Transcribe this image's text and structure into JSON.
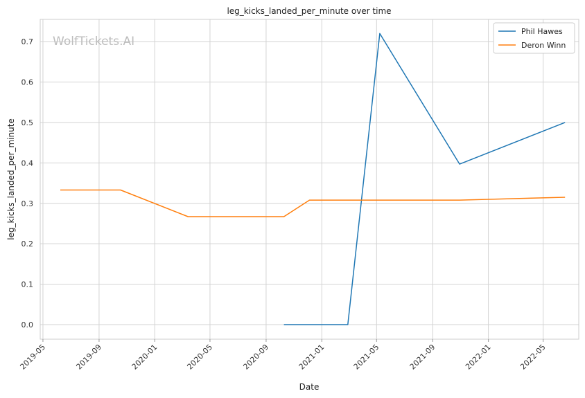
{
  "watermark": "WolfTickets.AI",
  "chart_data": {
    "type": "line",
    "title": "leg_kicks_landed_per_minute over time",
    "xlabel": "Date",
    "ylabel": "leg_kicks_landed_per_minute",
    "x_type": "date",
    "xlim": [
      "2019-04-25",
      "2022-07-18"
    ],
    "ylim": [
      -0.036,
      0.755
    ],
    "x_ticks": [
      "2019-05",
      "2019-09",
      "2020-01",
      "2020-05",
      "2020-09",
      "2021-01",
      "2021-05",
      "2021-09",
      "2022-01",
      "2022-05"
    ],
    "y_ticks": [
      0.0,
      0.1,
      0.2,
      0.3,
      0.4,
      0.5,
      0.6,
      0.7
    ],
    "y_tick_labels": [
      "0.0",
      "0.1",
      "0.2",
      "0.3",
      "0.4",
      "0.5",
      "0.6",
      "0.7"
    ],
    "grid": true,
    "legend_position": "top-right",
    "series": [
      {
        "name": "Phil Hawes",
        "color": "#1f77b4",
        "points": [
          {
            "x": "2020-10-10",
            "y": 0.0
          },
          {
            "x": "2021-02-27",
            "y": 0.0
          },
          {
            "x": "2021-05-08",
            "y": 0.72
          },
          {
            "x": "2021-10-30",
            "y": 0.397
          },
          {
            "x": "2022-06-18",
            "y": 0.5
          }
        ]
      },
      {
        "name": "Deron Winn",
        "color": "#ff7f0e",
        "points": [
          {
            "x": "2019-06-08",
            "y": 0.333
          },
          {
            "x": "2019-10-18",
            "y": 0.333
          },
          {
            "x": "2020-03-14",
            "y": 0.267
          },
          {
            "x": "2020-10-10",
            "y": 0.267
          },
          {
            "x": "2020-12-05",
            "y": 0.308
          },
          {
            "x": "2021-10-30",
            "y": 0.308
          },
          {
            "x": "2022-06-18",
            "y": 0.315
          }
        ]
      }
    ]
  }
}
